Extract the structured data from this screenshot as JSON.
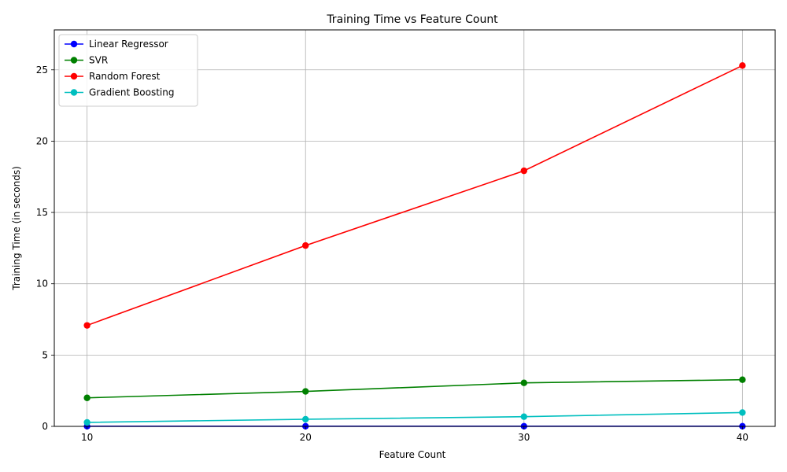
{
  "chart_data": {
    "type": "line",
    "title": "Training Time vs Feature Count",
    "xlabel": "Feature Count",
    "ylabel": "Training Time (in seconds)",
    "x": [
      10,
      20,
      30,
      40
    ],
    "xticks": [
      10,
      20,
      30,
      40
    ],
    "yticks": [
      0,
      5,
      10,
      15,
      20,
      25
    ],
    "xlim": [
      8.5,
      41.5
    ],
    "ylim": [
      0,
      27.8
    ],
    "grid": true,
    "legend_position": "top-left",
    "series": [
      {
        "name": "Linear Regressor",
        "color": "#0000ff",
        "values": [
          0.01,
          0.01,
          0.01,
          0.01
        ]
      },
      {
        "name": "SVR",
        "color": "#008000",
        "values": [
          2.0,
          2.45,
          3.05,
          3.27
        ]
      },
      {
        "name": "Random Forest",
        "color": "#ff0000",
        "values": [
          7.08,
          12.68,
          17.92,
          25.3
        ]
      },
      {
        "name": "Gradient Boosting",
        "color": "#00bfbf",
        "values": [
          0.28,
          0.5,
          0.68,
          0.97
        ]
      }
    ]
  }
}
